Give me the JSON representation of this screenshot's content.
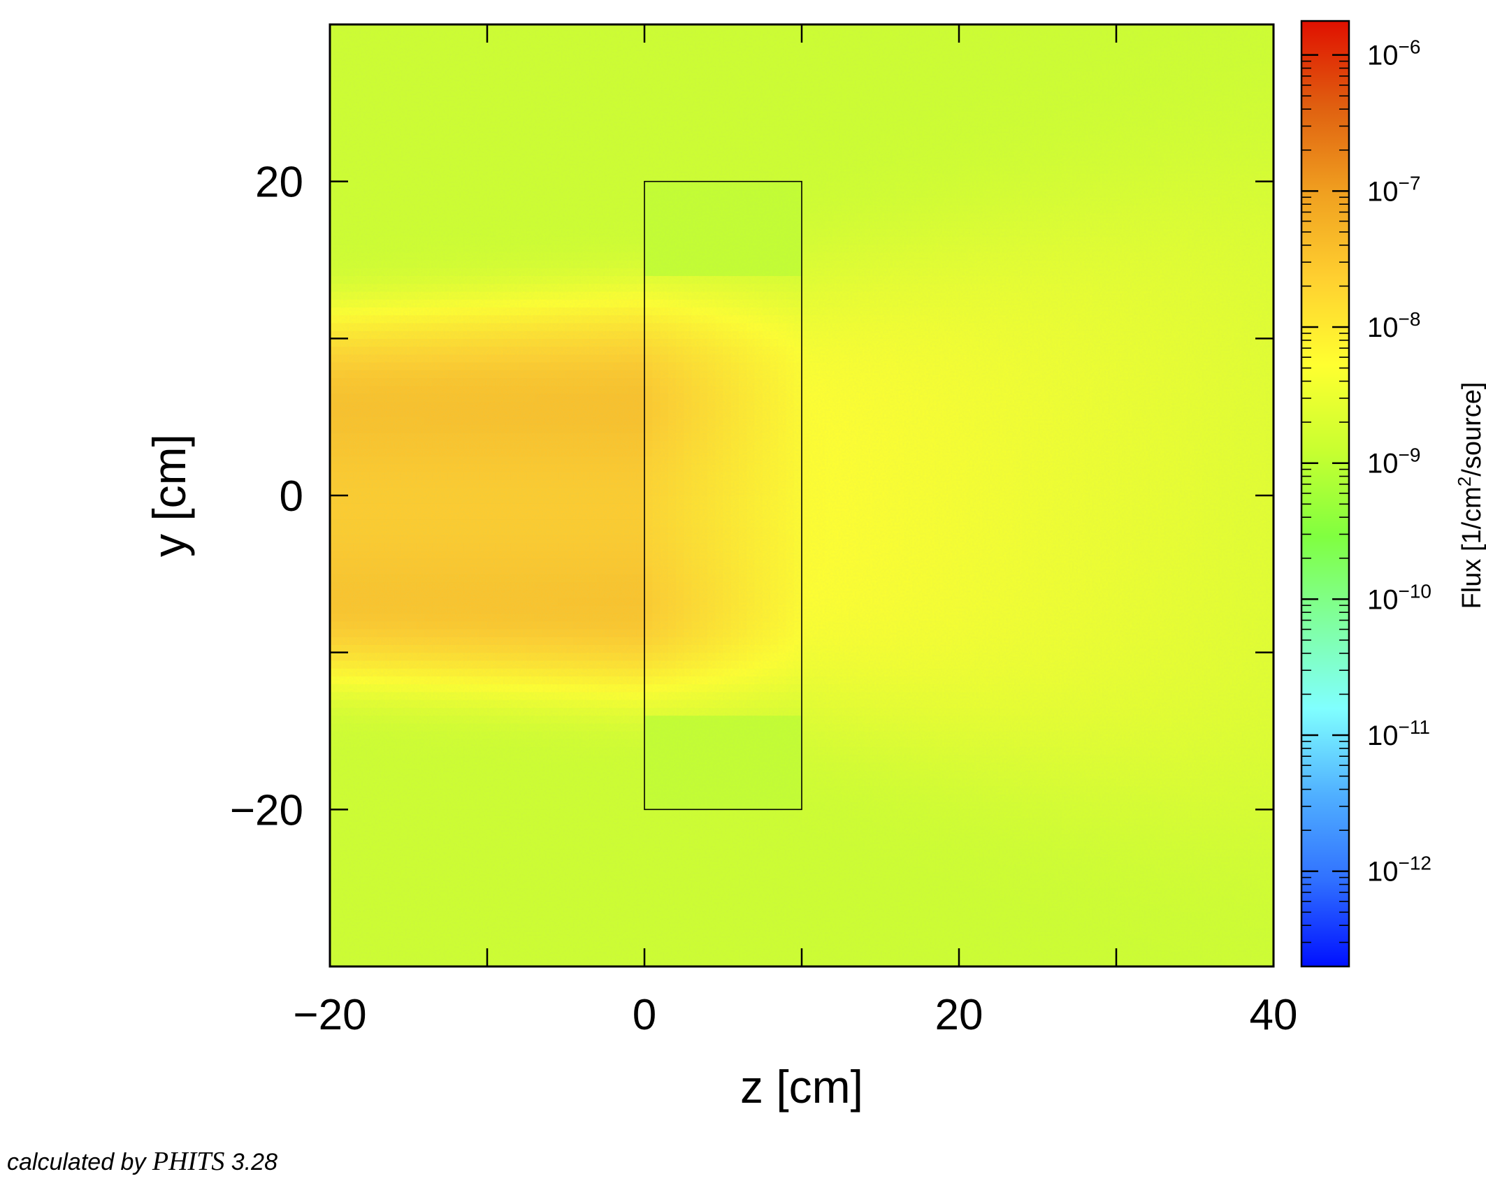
{
  "chart_data": {
    "type": "heatmap",
    "title": "",
    "xlabel": "z [cm]",
    "ylabel": "y [cm]",
    "xlim": [
      -20,
      40
    ],
    "ylim": [
      -30,
      30
    ],
    "x_ticks": [
      -20,
      0,
      20,
      40
    ],
    "y_ticks": [
      -20,
      0,
      20
    ],
    "x_tick_labels": [
      "−20",
      "0",
      "20",
      "40"
    ],
    "y_tick_labels": [
      "−20",
      "0",
      "20"
    ],
    "colorbar": {
      "label": "Flux [1/cm²/source]",
      "scale": "log",
      "range_exp": [
        -12.7,
        -5.75
      ],
      "ticks": [
        {
          "exp": -6,
          "label_base": "10",
          "label_exp": "−6"
        },
        {
          "exp": -7,
          "label_base": "10",
          "label_exp": "−7"
        },
        {
          "exp": -8,
          "label_base": "10",
          "label_exp": "−8"
        },
        {
          "exp": -9,
          "label_base": "10",
          "label_exp": "−9"
        },
        {
          "exp": -10,
          "label_base": "10",
          "label_exp": "−10"
        },
        {
          "exp": -11,
          "label_base": "10",
          "label_exp": "−11"
        },
        {
          "exp": -12,
          "label_base": "10",
          "label_exp": "−12"
        }
      ],
      "colors": [
        "#0010ff",
        "#3070ff",
        "#50b0ff",
        "#80ffff",
        "#80ffa0",
        "#80ff40",
        "#c8ff30",
        "#ffff30",
        "#ffd030",
        "#f0a020",
        "#e06010",
        "#e01000"
      ]
    },
    "description_of_field": "background flux ~1e-9 (green); elevated ~5e-8 (orange) band from z=-20 to ~10 around |y|<13, peaks near y=+6 and y=-8",
    "background_exp": -8.85,
    "slab": {
      "z": [
        0,
        10
      ],
      "y": [
        -20,
        20
      ]
    },
    "highlight_regions": [
      {
        "z": [
          -20,
          0
        ],
        "y": [
          -14,
          14
        ],
        "exp": -7.45
      },
      {
        "z": [
          0,
          10
        ],
        "y": [
          -13,
          13
        ],
        "exp": -7.7
      },
      {
        "z": [
          10,
          40
        ],
        "y": [
          -15,
          15
        ],
        "exp": -8.45
      }
    ]
  },
  "footer": {
    "prefix": "calculated by ",
    "program": "PHITS",
    "version": " 3.28"
  }
}
